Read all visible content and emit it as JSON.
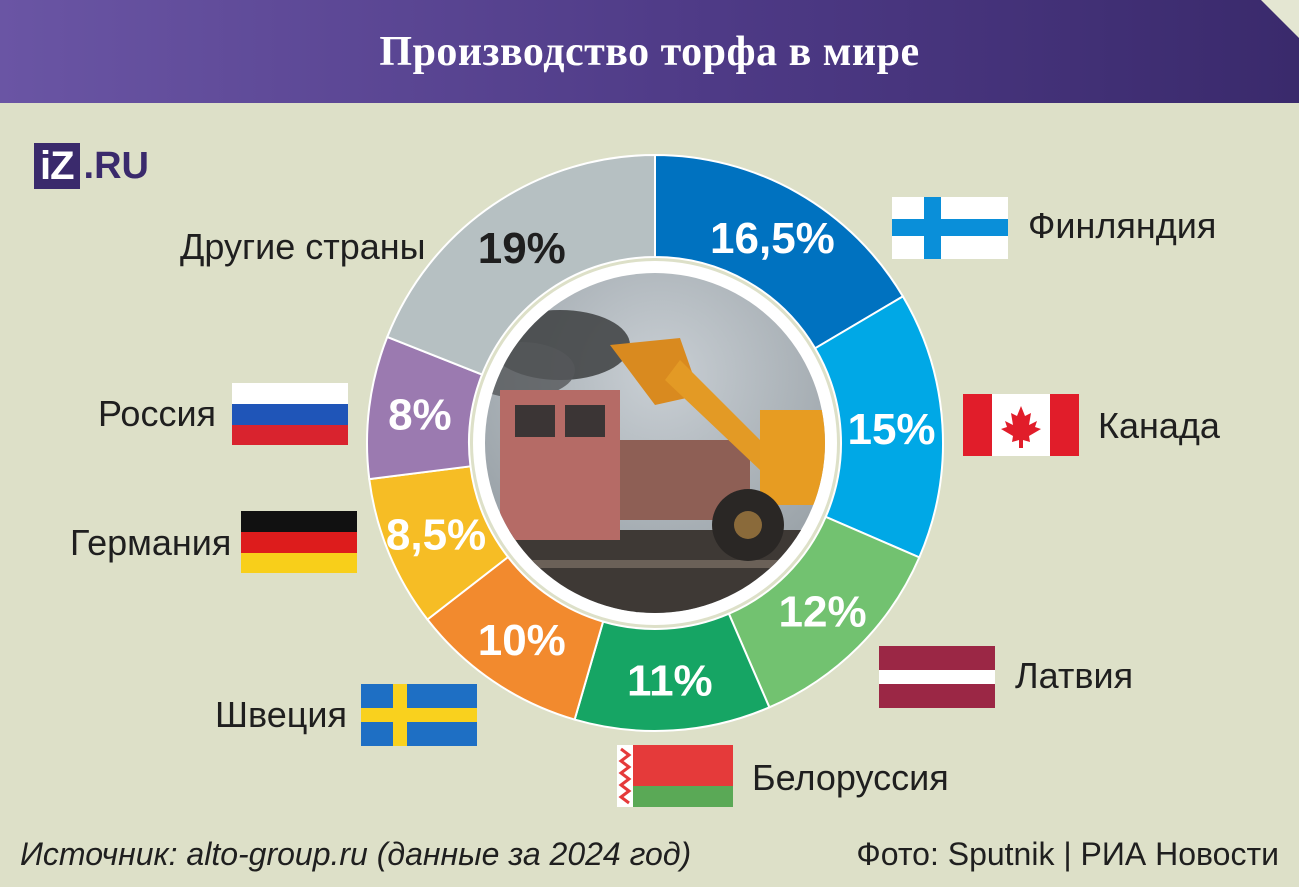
{
  "header": {
    "title": "Производство торфа в мире"
  },
  "logo": {
    "mark": "iZ",
    "suffix": ".RU"
  },
  "chart_data": {
    "type": "pie",
    "title": "Производство торфа в мире",
    "unit": "%",
    "slices": [
      {
        "name": "Финляндия",
        "value": 16.5,
        "label": "16,5%",
        "color": "#0072c0",
        "label_color": "#ffffff"
      },
      {
        "name": "Канада",
        "value": 15,
        "label": "15%",
        "color": "#00a8e6",
        "label_color": "#ffffff"
      },
      {
        "name": "Латвия",
        "value": 12,
        "label": "12%",
        "color": "#72c270",
        "label_color": "#ffffff"
      },
      {
        "name": "Белоруссия",
        "value": 11,
        "label": "11%",
        "color": "#16a564",
        "label_color": "#ffffff"
      },
      {
        "name": "Швеция",
        "value": 10,
        "label": "10%",
        "color": "#f28a2e",
        "label_color": "#ffffff"
      },
      {
        "name": "Германия",
        "value": 8.5,
        "label": "8,5%",
        "color": "#f6bd25",
        "label_color": "#ffffff"
      },
      {
        "name": "Россия",
        "value": 8,
        "label": "8%",
        "color": "#9b7ab0",
        "label_color": "#ffffff"
      },
      {
        "name": "Другие страны",
        "value": 19,
        "label": "19%",
        "color": "#b6c0c2",
        "label_color": "#1f1f1f"
      }
    ]
  },
  "legend": {
    "finland": "Финляндия",
    "canada": "Канада",
    "latvia": "Латвия",
    "belarus": "Белоруссия",
    "sweden": "Швеция",
    "germany": "Германия",
    "russia": "Россия",
    "other": "Другие страны"
  },
  "footer": {
    "source": "Источник: alto-group.ru (данные за 2024 год)",
    "photo": "Фото: Sputnik | РИА Новости"
  }
}
